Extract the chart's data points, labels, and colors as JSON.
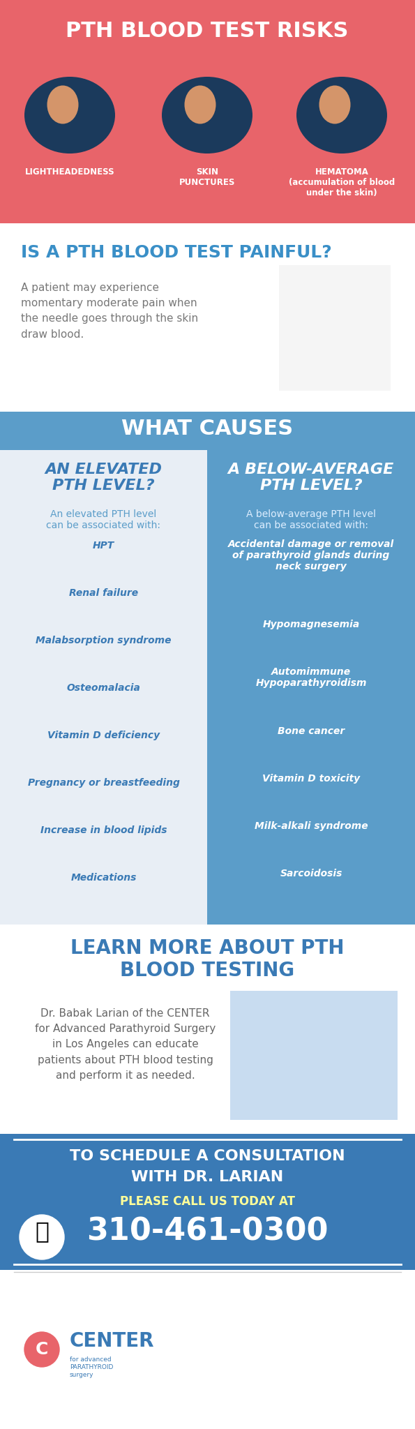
{
  "section1_bg": "#E8646A",
  "section1_title": "PTH BLOOD TEST RISKS",
  "section1_title_color": "#FFFFFF",
  "risks": [
    "LIGHTHEADEDNESS",
    "SKIN\nPUNCTURES",
    "HEMATOMA\n(accumulation of blood\nunder the skin)"
  ],
  "section2_bg": "#FFFFFF",
  "section2_title": "IS A PTH BLOOD TEST PAINFUL?",
  "section2_title_color": "#3A8FC7",
  "section2_body": "A patient may experience\nmomentary moderate pain when\nthe needle goes through the skin\ndraw blood.",
  "section2_body_color": "#777777",
  "section3_bg": "#5B9DC9",
  "section3_title": "WHAT CAUSES",
  "section3_title_color": "#FFFFFF",
  "left_col_bg": "#E8EEF5",
  "right_col_bg": "#5B9DC9",
  "left_header": "AN ELEVATED\nPTH LEVEL?",
  "left_header_color": "#3A7AB5",
  "left_subhead": "An elevated PTH level\ncan be associated with:",
  "left_subhead_color": "#5B9DC9",
  "left_items": [
    "HPT",
    "Renal failure",
    "Malabsorption syndrome",
    "Osteomalacia",
    "Vitamin D deficiency",
    "Pregnancy or breastfeeding",
    "Increase in blood lipids",
    "Medications"
  ],
  "left_items_color": "#3A7AB5",
  "right_header": "A BELOW-AVERAGE\nPTH LEVEL?",
  "right_header_color": "#FFFFFF",
  "right_subhead": "A below-average PTH level\ncan be associated with:",
  "right_subhead_color": "#DDEEFF",
  "right_items": [
    "Accidental damage or removal\nof parathyroid glands during\nneck surgery",
    "Hypomagnesemia",
    "Automimmune\nHypoparathyroidism",
    "Bone cancer",
    "Vitamin D toxicity",
    "Milk-alkali syndrome",
    "Sarcoidosis"
  ],
  "right_items_color": "#FFFFFF",
  "section4_bg": "#FFFFFF",
  "section4_title": "LEARN MORE ABOUT PTH\nBLOOD TESTING",
  "section4_title_color": "#3A7AB5",
  "section4_body": "Dr. Babak Larian of the CENTER\nfor Advanced Parathyroid Surgery\nin Los Angeles can educate\npatients about PTH blood testing\nand perform it as needed.",
  "section4_body_color": "#666666",
  "section5_bg": "#3A7AB5",
  "section5_line1": "TO SCHEDULE A CONSULTATION",
  "section5_line2": "WITH DR. LARIAN",
  "section5_line3": "PLEASE CALL US TODAY AT",
  "section5_phone": "310-461-0300",
  "section5_text_color": "#FFFFFF",
  "section5_phone_color": "#FFFFFF",
  "footer_bg": "#FFFFFF",
  "footer_text": "CENTER",
  "footer_subtext": "for advanced\nPARATHYROID\nsurgery",
  "footer_text_color": "#3A7AB5",
  "oval_bg": "#1B3A5C",
  "oval_face_color": "#D4956A"
}
